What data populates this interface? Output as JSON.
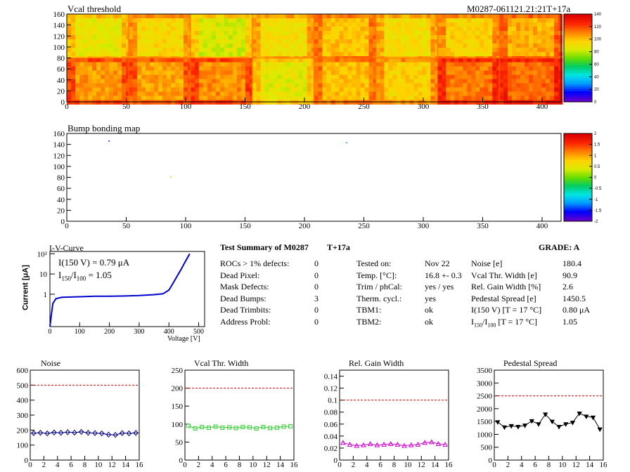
{
  "header": {
    "module_id": "M0287-061121.21:21T+17a"
  },
  "colors": {
    "frame": "#000000",
    "grid_line": "#000000",
    "noise": "#00007f",
    "vcal": "#33cc33",
    "gain": "#cc00cc",
    "pedestal": "#000000",
    "iv_curve": "#0000cc",
    "limit_line": "#cc0000"
  },
  "chart_data": [
    {
      "type": "heatmap",
      "title": "Vcal threshold",
      "xlim": [
        0,
        416
      ],
      "ylim": [
        0,
        160
      ],
      "x_ticks": [
        "0",
        "50",
        "100",
        "150",
        "200",
        "250",
        "300",
        "350",
        "400"
      ],
      "y_ticks": [
        "0",
        "20",
        "40",
        "60",
        "80",
        "100",
        "120",
        "140",
        "160"
      ],
      "palette_ticks": [
        "0",
        "20",
        "40",
        "60",
        "80",
        "100",
        "120",
        "140"
      ],
      "palette_range": [
        0,
        145
      ],
      "roc_grid": {
        "cols": 8,
        "rows": 2
      },
      "roc_mean_values": {
        "top": [
          92,
          98,
          88,
          96,
          104,
          96,
          100,
          108
        ],
        "bottom": [
          112,
          110,
          114,
          90,
          104,
          100,
          118,
          120
        ]
      }
    },
    {
      "type": "heatmap",
      "title": "Bump bonding map",
      "xlim": [
        0,
        416
      ],
      "ylim": [
        0,
        160
      ],
      "x_ticks": [
        "0",
        "50",
        "100",
        "150",
        "200",
        "250",
        "300",
        "350",
        "400"
      ],
      "y_ticks": [
        "0",
        "20",
        "40",
        "60",
        "80",
        "100",
        "120",
        "140",
        "160"
      ],
      "palette_ticks": [
        "-2",
        "-1.5",
        "-1",
        "-0.5",
        "0",
        "0.5",
        "1",
        "1.5",
        "2"
      ],
      "palette_range": [
        -2,
        2
      ],
      "points": [
        {
          "x": 35,
          "y": 147,
          "value": -1.5
        },
        {
          "x": 87,
          "y": 82,
          "value": 0.3
        },
        {
          "x": 235,
          "y": 144,
          "value": -1.2
        }
      ]
    },
    {
      "type": "line",
      "title": "I-V-Curve",
      "xlabel": "Voltage [V]",
      "ylabel": "Current [μA]",
      "xlim": [
        0,
        520
      ],
      "ylog": true,
      "x_ticks": [
        "0",
        "100",
        "200",
        "300",
        "400",
        "500"
      ],
      "y_ticks": [
        "1",
        "10",
        "10²"
      ],
      "annotations": [
        "I(150 V) = 0.79 μA",
        "I150/I100 =  1.05"
      ],
      "annotation_ratio": {
        "prefix": "I",
        "sub1": "150",
        "mid": "/I",
        "sub2": "100",
        "suffix": " =  1.05"
      },
      "x": [
        0,
        5,
        10,
        20,
        40,
        60,
        100,
        150,
        200,
        250,
        300,
        350,
        380,
        400,
        410,
        420,
        430,
        440,
        450,
        460,
        470
      ],
      "y": [
        0.025,
        0.1,
        0.35,
        0.6,
        0.7,
        0.72,
        0.75,
        0.79,
        0.8,
        0.82,
        0.86,
        0.95,
        1.05,
        1.6,
        2.8,
        5,
        9,
        16,
        30,
        55,
        100
      ]
    },
    {
      "type": "line",
      "title": "Noise",
      "series": [
        {
          "values": [
            180,
            182,
            178,
            184,
            182,
            186,
            183,
            188,
            182,
            180,
            178,
            170,
            168,
            180,
            178,
            181
          ]
        }
      ],
      "limit": 500,
      "xlim": [
        0,
        16
      ],
      "ylim": [
        0,
        600
      ],
      "x_ticks": [
        "0",
        "2",
        "4",
        "6",
        "8",
        "10",
        "12",
        "14",
        "16"
      ],
      "y_ticks": [
        "0",
        "100",
        "200",
        "300",
        "400",
        "500",
        "600"
      ]
    },
    {
      "type": "line",
      "title": "Vcal Thr. Width",
      "series": [
        {
          "values": [
            95,
            88,
            92,
            90,
            93,
            90,
            91,
            89,
            92,
            91,
            88,
            92,
            89,
            90,
            93,
            94
          ]
        }
      ],
      "limit": 200,
      "xlim": [
        0,
        16
      ],
      "ylim": [
        0,
        250
      ],
      "x_ticks": [
        "0",
        "2",
        "4",
        "6",
        "8",
        "10",
        "12",
        "14",
        "16"
      ],
      "y_ticks": [
        "0",
        "50",
        "100",
        "150",
        "200",
        "250"
      ]
    },
    {
      "type": "line",
      "title": "Rel. Gain Width",
      "series": [
        {
          "values": [
            0.029,
            0.026,
            0.024,
            0.025,
            0.027,
            0.025,
            0.026,
            0.027,
            0.026,
            0.024,
            0.025,
            0.026,
            0.029,
            0.03,
            0.027,
            0.026
          ]
        }
      ],
      "limit": 0.1,
      "xlim": [
        0,
        16
      ],
      "ylim": [
        0,
        0.15
      ],
      "x_ticks": [
        "0",
        "2",
        "4",
        "6",
        "8",
        "10",
        "12",
        "14",
        "16"
      ],
      "y_ticks": [
        "0",
        "0.02",
        "0.04",
        "0.06",
        "0.08",
        "0.1",
        "0.12",
        "0.14"
      ]
    },
    {
      "type": "line",
      "title": "Pedestal Spread",
      "series": [
        {
          "values": [
            1480,
            1280,
            1330,
            1300,
            1350,
            1520,
            1400,
            1780,
            1500,
            1300,
            1400,
            1460,
            1820,
            1700,
            1660,
            1200
          ]
        }
      ],
      "limit": 2500,
      "xlim": [
        0,
        16
      ],
      "ylim": [
        0,
        3500
      ],
      "x_ticks": [
        "0",
        "2",
        "4",
        "6",
        "8",
        "10",
        "12",
        "14",
        "16"
      ],
      "y_ticks": [
        "0",
        "500",
        "1000",
        "1500",
        "2000",
        "2500",
        "3000",
        "3500"
      ]
    }
  ],
  "summary": {
    "title": "Test Summary of M0287",
    "temp_tag": "T+17a",
    "grade": "GRADE:  A",
    "left_rows": [
      {
        "label": "ROCs > 1% defects:",
        "value": "0"
      },
      {
        "label": "Dead Pixel:",
        "value": "0"
      },
      {
        "label": "Mask Defects:",
        "value": "0"
      },
      {
        "label": "Dead Bumps:",
        "value": "3"
      },
      {
        "label": "Dead Trimbits:",
        "value": "0"
      },
      {
        "label": "Address Probl:",
        "value": "0"
      }
    ],
    "mid_rows": [
      {
        "label": "Tested on:",
        "value": "Nov 22"
      },
      {
        "label": "Temp. [°C]:",
        "value": "16.8 +- 0.3"
      },
      {
        "label": "Trim / phCal:",
        "value": "yes / yes"
      },
      {
        "label": "Therm. cycl.:",
        "value": "yes"
      },
      {
        "label": "TBM1:",
        "value": "ok"
      },
      {
        "label": "TBM2:",
        "value": "ok"
      }
    ],
    "right_rows": [
      {
        "label": "Noise [e]",
        "value": "180.4"
      },
      {
        "label": "Vcal Thr. Width [e]",
        "value": "90.9"
      },
      {
        "label": "Rel. Gain Width [%]",
        "value": "2.6"
      },
      {
        "label": "Pedestal Spread [e]",
        "value": "1450.5"
      },
      {
        "label": "I(150 V) [T = 17 °C]",
        "value": "0.80 μA"
      },
      {
        "label": "I150/I100 [T = 17 °C]",
        "value": "1.05"
      }
    ],
    "right_ratio_label": {
      "prefix": "I",
      "sub1": "150",
      "mid": "/I",
      "sub2": "100",
      "suffix": "  [T = 17 °C]"
    }
  }
}
